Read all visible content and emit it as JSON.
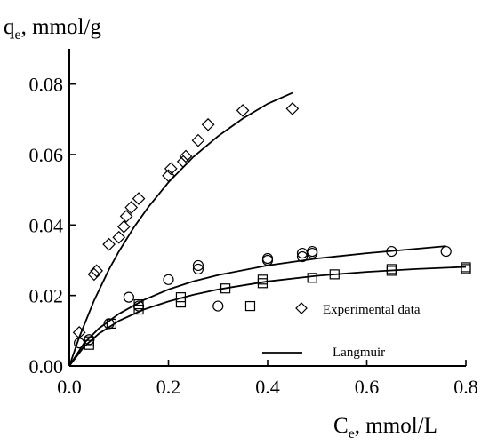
{
  "chart_data": {
    "type": "scatter",
    "title": "",
    "xlabel": {
      "main": "C",
      "sub": "e",
      "rest": ", mmol/L"
    },
    "ylabel": {
      "main": "q",
      "sub": "e",
      "rest": ", mmol/g"
    },
    "xlim": [
      0,
      0.8
    ],
    "ylim": [
      0,
      0.09
    ],
    "xticks": [
      "0.0",
      "0.2",
      "0.4",
      "0.6",
      "0.8"
    ],
    "yticks": [
      "0.00",
      "0.02",
      "0.04",
      "0.06",
      "0.08"
    ],
    "grid": false,
    "legend_position": "bottom-right",
    "legend": {
      "experimental": "Experimental data",
      "langmuir": "Langmuir"
    },
    "series": [
      {
        "marker": "diamond",
        "points": [
          [
            0.02,
            0.0095
          ],
          [
            0.05,
            0.026
          ],
          [
            0.055,
            0.027
          ],
          [
            0.08,
            0.0345
          ],
          [
            0.1,
            0.0365
          ],
          [
            0.11,
            0.0395
          ],
          [
            0.115,
            0.0425
          ],
          [
            0.125,
            0.045
          ],
          [
            0.14,
            0.0475
          ],
          [
            0.2,
            0.054
          ],
          [
            0.205,
            0.056
          ],
          [
            0.23,
            0.058
          ],
          [
            0.235,
            0.0595
          ],
          [
            0.26,
            0.064
          ],
          [
            0.28,
            0.0685
          ],
          [
            0.35,
            0.0725
          ],
          [
            0.45,
            0.073
          ]
        ],
        "fit": [
          [
            0.0,
            0.0
          ],
          [
            0.02,
            0.0082
          ],
          [
            0.05,
            0.0186
          ],
          [
            0.08,
            0.0274
          ],
          [
            0.1,
            0.0325
          ],
          [
            0.13,
            0.0393
          ],
          [
            0.16,
            0.0452
          ],
          [
            0.2,
            0.0521
          ],
          [
            0.25,
            0.0593
          ],
          [
            0.3,
            0.0652
          ],
          [
            0.35,
            0.0702
          ],
          [
            0.4,
            0.0744
          ],
          [
            0.45,
            0.0775
          ]
        ]
      },
      {
        "marker": "circle",
        "points": [
          [
            0.02,
            0.0065
          ],
          [
            0.04,
            0.0075
          ],
          [
            0.08,
            0.012
          ],
          [
            0.12,
            0.0195
          ],
          [
            0.14,
            0.017
          ],
          [
            0.2,
            0.0245
          ],
          [
            0.26,
            0.0275
          ],
          [
            0.26,
            0.0285
          ],
          [
            0.3,
            0.017
          ],
          [
            0.4,
            0.03
          ],
          [
            0.4,
            0.0305
          ],
          [
            0.47,
            0.031
          ],
          [
            0.47,
            0.032
          ],
          [
            0.49,
            0.0325
          ],
          [
            0.49,
            0.032
          ],
          [
            0.65,
            0.0325
          ],
          [
            0.76,
            0.0325
          ]
        ],
        "fit": [
          [
            0.0,
            0.0
          ],
          [
            0.03,
            0.0065
          ],
          [
            0.06,
            0.0107
          ],
          [
            0.1,
            0.0148
          ],
          [
            0.15,
            0.0187
          ],
          [
            0.2,
            0.0217
          ],
          [
            0.25,
            0.024
          ],
          [
            0.3,
            0.0258
          ],
          [
            0.4,
            0.0285
          ],
          [
            0.5,
            0.0305
          ],
          [
            0.6,
            0.032
          ],
          [
            0.76,
            0.034
          ]
        ]
      },
      {
        "marker": "square",
        "points": [
          [
            0.04,
            0.006
          ],
          [
            0.04,
            0.007
          ],
          [
            0.085,
            0.012
          ],
          [
            0.14,
            0.016
          ],
          [
            0.14,
            0.0175
          ],
          [
            0.225,
            0.018
          ],
          [
            0.225,
            0.0195
          ],
          [
            0.315,
            0.022
          ],
          [
            0.365,
            0.017
          ],
          [
            0.39,
            0.0235
          ],
          [
            0.39,
            0.0245
          ],
          [
            0.49,
            0.025
          ],
          [
            0.535,
            0.026
          ],
          [
            0.65,
            0.027
          ],
          [
            0.65,
            0.0275
          ],
          [
            0.8,
            0.0275
          ],
          [
            0.8,
            0.028
          ]
        ],
        "fit": [
          [
            0.0,
            0.0
          ],
          [
            0.03,
            0.0055
          ],
          [
            0.06,
            0.0092
          ],
          [
            0.1,
            0.0128
          ],
          [
            0.15,
            0.016
          ],
          [
            0.2,
            0.0183
          ],
          [
            0.25,
            0.0202
          ],
          [
            0.3,
            0.0217
          ],
          [
            0.4,
            0.024
          ],
          [
            0.5,
            0.0256
          ],
          [
            0.6,
            0.0267
          ],
          [
            0.7,
            0.0275
          ],
          [
            0.8,
            0.0281
          ]
        ]
      }
    ]
  }
}
